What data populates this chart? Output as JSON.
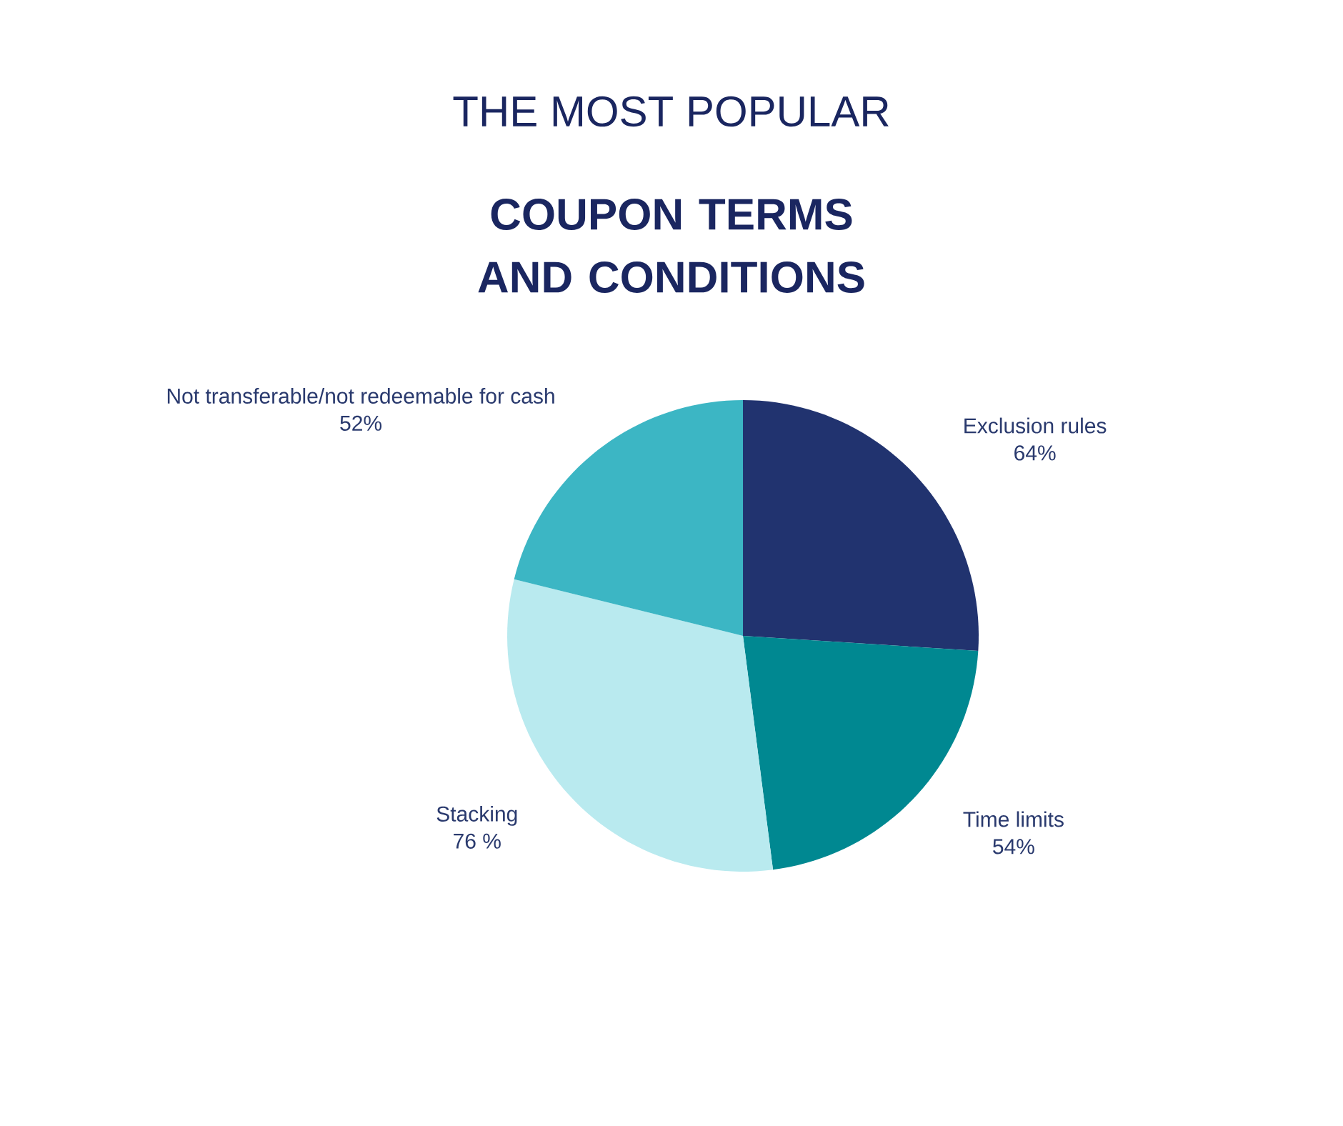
{
  "chart_data": {
    "type": "pie",
    "title": "THE MOST POPULAR",
    "subtitle": "COUPON TERMS AND CONDITIONS",
    "categories": [
      "Exclusion rules",
      "Time limits",
      "Stacking",
      "Not transferable/not redeemable for cash"
    ],
    "values": [
      64,
      54,
      76,
      52
    ],
    "value_labels": [
      "64%",
      "54%",
      "76 %",
      "52%"
    ],
    "colors": [
      "#21336f",
      "#008891",
      "#b9eaef",
      "#3cb6c4"
    ]
  }
}
